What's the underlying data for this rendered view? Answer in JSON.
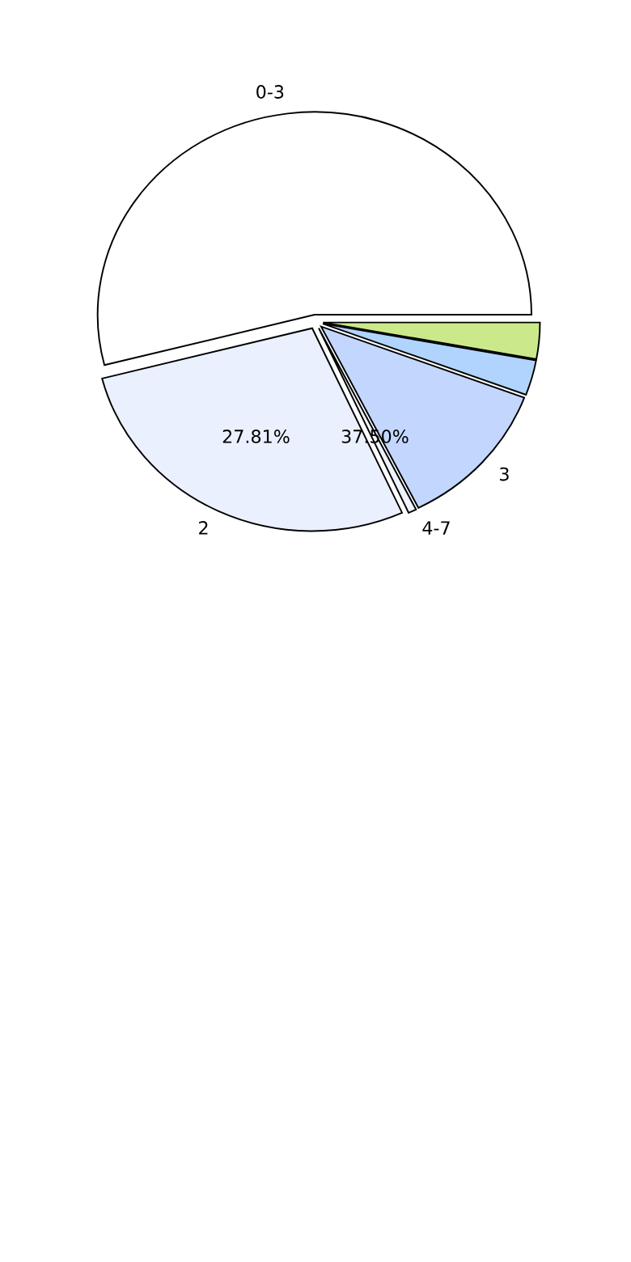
{
  "chart_data": {
    "type": "pie",
    "categories": [
      "0-3",
      "2",
      "4-7",
      "3",
      null,
      null
    ],
    "values": [
      53.99,
      27.81,
      0.6,
      11.9,
      2.8,
      2.9
    ],
    "colors": [
      "#ffffff",
      "#eaf0fe",
      "#eef3fe",
      "#c3d7fe",
      "#b0d4fe",
      "#cbe98a"
    ],
    "value_labels": [
      null,
      "27.81%",
      null,
      null,
      null,
      null
    ],
    "annotations": [
      {
        "text": "37.50%",
        "x": "4-7"
      }
    ],
    "legend": false
  }
}
